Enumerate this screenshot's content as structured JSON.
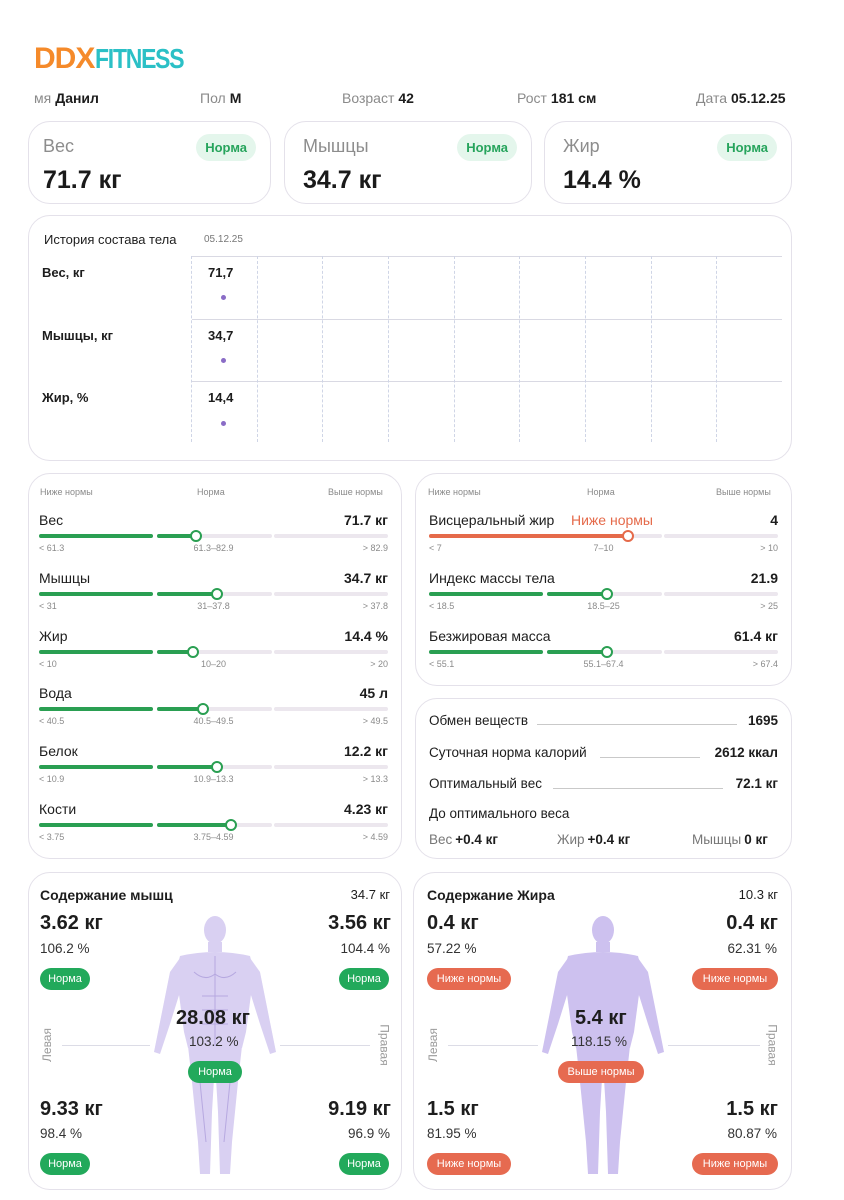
{
  "logo": {
    "ddx": "DDX",
    "fitness": "FITNESS"
  },
  "info": {
    "name_label": "мя",
    "name_value": "Данил",
    "sex_label": "Пол",
    "sex_value": "М",
    "age_label": "Возраст",
    "age_value": "42",
    "height_label": "Рост",
    "height_value": "181 см",
    "date_label": "Дата",
    "date_value": "05.12.25"
  },
  "stats": [
    {
      "label": "Вес",
      "value": "71.7 кг",
      "status": "Норма"
    },
    {
      "label": "Мышцы",
      "value": "34.7 кг",
      "status": "Норма"
    },
    {
      "label": "Жир",
      "value": "14.4 %",
      "status": "Норма"
    }
  ],
  "history": {
    "title": "История состава тела",
    "date": "05.12.25",
    "rows": [
      {
        "label": "Вес, кг",
        "value": "71,7"
      },
      {
        "label": "Мышцы, кг",
        "value": "34,7"
      },
      {
        "label": "Жир, %",
        "value": "14,4"
      }
    ]
  },
  "range_headers": {
    "below": "Ниже нормы",
    "norm": "Норма",
    "above": "Выше нормы"
  },
  "ranges_left": [
    {
      "name": "Вес",
      "value": "71.7 кг",
      "low": "< 61.3",
      "mid": "61.3–82.9",
      "high": "> 82.9",
      "position": 0.45
    },
    {
      "name": "Мышцы",
      "value": "34.7 кг",
      "low": "< 31",
      "mid": "31–37.8",
      "high": "> 37.8",
      "position": 0.51
    },
    {
      "name": "Жир",
      "value": "14.4 %",
      "low": "< 10",
      "mid": "10–20",
      "high": "> 20",
      "position": 0.44
    },
    {
      "name": "Вода",
      "value": "45 л",
      "low": "< 40.5",
      "mid": "40.5–49.5",
      "high": "> 49.5",
      "position": 0.47
    },
    {
      "name": "Белок",
      "value": "12.2 кг",
      "low": "< 10.9",
      "mid": "10.9–13.3",
      "high": "> 13.3",
      "position": 0.51
    },
    {
      "name": "Кости",
      "value": "4.23 кг",
      "low": "< 3.75",
      "mid": "3.75–4.59",
      "high": "> 4.59",
      "position": 0.55
    }
  ],
  "ranges_right": [
    {
      "name": "Висцеральный жир",
      "status": "Ниже нормы",
      "value": "4",
      "low": "< 7",
      "mid": "7–10",
      "high": "> 10",
      "position": 0.57,
      "color": "#e56a4a"
    },
    {
      "name": "Индекс массы тела",
      "value": "21.9",
      "low": "< 18.5",
      "mid": "18.5–25",
      "high": "> 25",
      "position": 0.51,
      "color": "#2a9f52"
    },
    {
      "name": "Безжировая масса",
      "value": "61.4 кг",
      "low": "< 55.1",
      "mid": "55.1–67.4",
      "high": "> 67.4",
      "position": 0.51,
      "color": "#2a9f52"
    }
  ],
  "metabolism": {
    "rows": [
      {
        "label": "Обмен веществ",
        "value": "1695"
      },
      {
        "label": "Суточная норма калорий",
        "value": "2612 ккал"
      },
      {
        "label": "Оптимальный вес",
        "value": "72.1 кг"
      }
    ],
    "to_optimal_label": "До оптимального веса",
    "weight_label": "Вес",
    "weight_value": "+0.4 кг",
    "fat_label": "Жир",
    "fat_value": "+0.4 кг",
    "muscle_label": "Мышцы",
    "muscle_value": "0 кг"
  },
  "muscle_segments": {
    "title": "Содержание мышц",
    "total": "34.7 кг",
    "left_label": "Левая",
    "right_label": "Правая",
    "left_arm": {
      "kg": "3.62 кг",
      "pct": "106.2 %",
      "status": "Норма"
    },
    "right_arm": {
      "kg": "3.56 кг",
      "pct": "104.4 %",
      "status": "Норма"
    },
    "trunk": {
      "kg": "28.08 кг",
      "pct": "103.2 %",
      "status": "Норма"
    },
    "left_leg": {
      "kg": "9.33 кг",
      "pct": "98.4 %",
      "status": "Норма"
    },
    "right_leg": {
      "kg": "9.19 кг",
      "pct": "96.9 %",
      "status": "Норма"
    }
  },
  "fat_segments": {
    "title": "Содержание Жира",
    "total": "10.3 кг",
    "left_label": "Левая",
    "right_label": "Правая",
    "left_arm": {
      "kg": "0.4 кг",
      "pct": "57.22 %",
      "status": "Ниже нормы"
    },
    "right_arm": {
      "kg": "0.4 кг",
      "pct": "62.31 %",
      "status": "Ниже нормы"
    },
    "trunk": {
      "kg": "5.4 кг",
      "pct": "118.15 %",
      "status": "Выше нормы"
    },
    "left_leg": {
      "kg": "1.5 кг",
      "pct": "81.95 %",
      "status": "Ниже нормы"
    },
    "right_leg": {
      "kg": "1.5 кг",
      "pct": "80.87 %",
      "status": "Ниже нормы"
    }
  },
  "colors": {
    "green": "#2a9f52",
    "red": "#e56a4a",
    "purple_figure": "#cfc4ee",
    "logo_orange": "#f58a2a",
    "logo_teal": "#2bc0c6"
  }
}
